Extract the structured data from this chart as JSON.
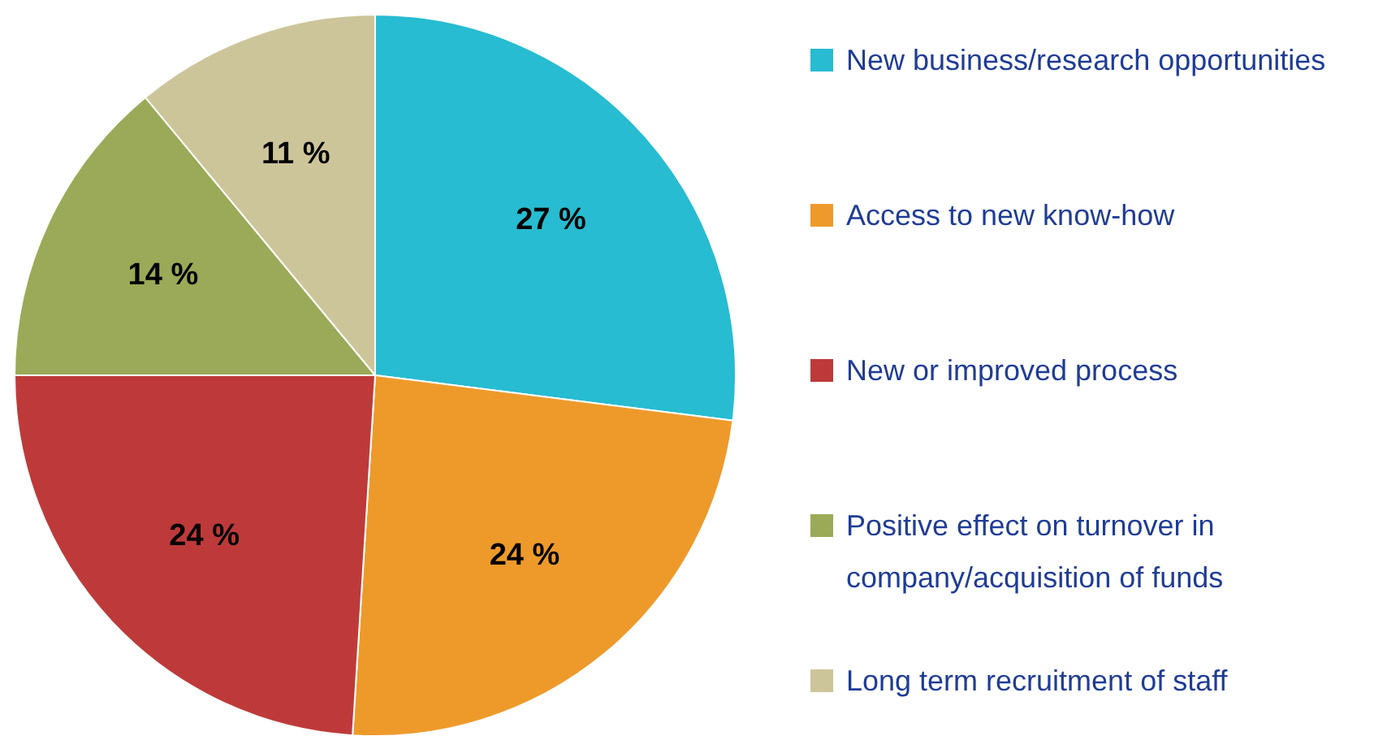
{
  "chart_data": {
    "type": "pie",
    "categories": [
      "New business/research opportunities",
      "Access to new know-how",
      "New or improved process",
      "Positive effect on turnover in company/acquisition of funds",
      "Long term recruitment of staff"
    ],
    "values": [
      27,
      24,
      24,
      14,
      11
    ],
    "colors": [
      "#27bcd1",
      "#ee9a2b",
      "#be3a3a",
      "#9aaa58",
      "#cdc59a"
    ],
    "value_labels": [
      "27 %",
      "24 %",
      "24 %",
      "14 %",
      "11 %"
    ],
    "legend": "right"
  }
}
